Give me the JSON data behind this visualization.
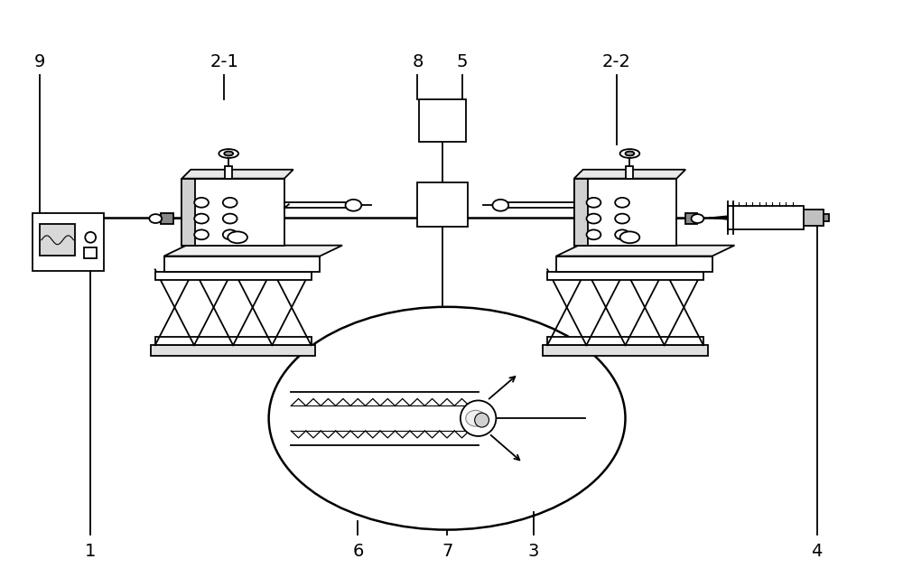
{
  "bg_color": "#ffffff",
  "line_color": "#000000",
  "label_color": "#000000",
  "line_width": 1.3,
  "thick_line": 1.8,
  "fig_width": 10.0,
  "fig_height": 6.5,
  "label_fontsize": 14
}
